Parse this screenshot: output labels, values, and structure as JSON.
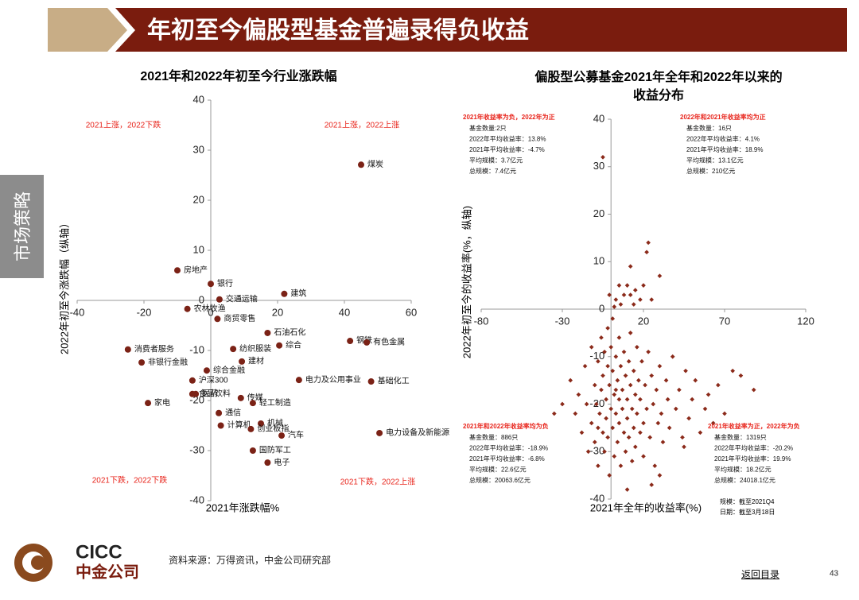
{
  "header": {
    "title": "年初至今偏股型基金普遍录得负收益"
  },
  "side_tab": "市场策略",
  "chart_data": [
    {
      "type": "scatter",
      "title": "2021年和2022年初至今行业涨跌幅",
      "xlabel": "2021年涨跌幅%",
      "ylabel": "2022年初至今涨跌幅（纵轴）",
      "labels": [
        "煤炭",
        "房地产",
        "银行",
        "交通运输",
        "建筑",
        "农林牧渔",
        "商贸零售",
        "石油石化",
        "钢铁",
        "有色金属",
        "综合",
        "纺织服装",
        "消费者服务",
        "非银行金融",
        "建材",
        "综合金融",
        "电力及公用事业",
        "基础化工",
        "沪深300",
        "食品饮料",
        "医药",
        "传媒",
        "轻工制造",
        "家电",
        "通信",
        "计算机",
        "机械",
        "创业板指",
        "汽车",
        "电力设备及新能源",
        "国防军工",
        "电子"
      ],
      "x": [
        45,
        -10,
        0,
        2.6,
        22,
        -7,
        2,
        17,
        41.7,
        46.7,
        20.5,
        6.7,
        -24.8,
        -20.7,
        9.3,
        -1.2,
        26.4,
        48,
        -5.5,
        -5.5,
        -4.5,
        9,
        12.6,
        -18.8,
        2.4,
        3,
        15,
        12,
        21.2,
        50.5,
        12.6,
        17
      ],
      "values": [
        27.1,
        6,
        3.3,
        0.2,
        1.3,
        -1.7,
        -3.7,
        -6.5,
        -8.1,
        -8.4,
        -9,
        -9.7,
        -9.8,
        -12.4,
        -12.2,
        -14,
        -15.9,
        -16.2,
        -16,
        -18.7,
        -18.7,
        -19.5,
        -20.5,
        -20.5,
        -22.5,
        -25,
        -24.6,
        -25.7,
        -27,
        -26.5,
        -30,
        -32.4
      ],
      "xlim": [
        -40,
        60
      ],
      "ylim": [
        -40,
        40
      ],
      "xticks": [
        -40,
        -20,
        0,
        20,
        40,
        60
      ],
      "yticks": [
        -40,
        -30,
        -20,
        -10,
        0,
        10,
        20,
        30,
        40
      ],
      "color": "#7b2216",
      "annotations": [
        "2021上涨，2022下跌",
        "2021上涨，2022上涨",
        "2021下跌，2022下跌",
        "2021下跌，2022上涨"
      ],
      "annotation_color": "#e8251c"
    },
    {
      "type": "scatter",
      "title": "偏股型公募基金2021年全年和2022年以来的收益分布",
      "xlabel": "2021年全年的收益率(%)",
      "ylabel": "2022年初至今的收益率(%，纵轴)",
      "x": [
        -5,
        -1,
        12,
        22,
        23,
        30,
        20,
        5,
        10,
        15,
        18,
        25,
        14,
        8,
        3,
        12,
        6,
        2,
        -25,
        -22,
        -20,
        -18,
        -16,
        -15,
        -14,
        -12,
        -12,
        -10,
        -10,
        -9,
        -8,
        -8,
        -7,
        -6,
        -6,
        -5,
        -5,
        -4,
        -4,
        -3,
        -3,
        -2,
        -2,
        -2,
        -1,
        -1,
        0,
        0,
        1,
        1,
        1,
        2,
        2,
        3,
        3,
        4,
        4,
        5,
        5,
        5,
        6,
        6,
        7,
        7,
        8,
        8,
        9,
        9,
        10,
        10,
        11,
        11,
        12,
        12,
        13,
        13,
        14,
        14,
        15,
        15,
        16,
        16,
        17,
        18,
        18,
        19,
        20,
        20,
        21,
        22,
        23,
        24,
        25,
        26,
        27,
        28,
        29,
        30,
        31,
        32,
        34,
        35,
        36,
        38,
        40,
        42,
        44,
        46,
        48,
        50,
        52,
        55,
        58,
        60,
        63,
        66,
        70,
        75,
        80,
        88,
        -30,
        -35,
        45,
        30,
        25,
        10,
        -8,
        3
      ],
      "values": [
        32,
        3,
        9,
        12,
        14,
        7,
        5,
        5,
        5,
        4,
        2,
        2,
        1,
        3,
        2,
        3,
        1,
        0.5,
        -15,
        -22,
        -18,
        -26,
        -12,
        -20,
        -30,
        -8,
        -24,
        -16,
        -28,
        -20,
        -11,
        -33,
        -22,
        -6,
        -17,
        -26,
        -14,
        -30,
        -9,
        -19,
        -23,
        -4,
        -12,
        -27,
        -16,
        -35,
        -8,
        -21,
        -13,
        -25,
        -2,
        -18,
        -31,
        -10,
        -22,
        -15,
        -28,
        -6,
        -19,
        -24,
        -12,
        -33,
        -17,
        -21,
        -9,
        -26,
        -14,
        -30,
        -19,
        -23,
        -11,
        -27,
        -16,
        -5,
        -21,
        -32,
        -13,
        -25,
        -18,
        -29,
        -8,
        -22,
        -15,
        -26,
        -19,
        -11,
        -24,
        -31,
        -16,
        -21,
        -9,
        -27,
        -14,
        -20,
        -33,
        -17,
        -24,
        -12,
        -22,
        -28,
        -15,
        -19,
        -25,
        -10,
        -21,
        -17,
        -27,
        -13,
        -23,
        -19,
        -15,
        -26,
        -21,
        -18,
        -24,
        -16,
        -22,
        -13,
        -14,
        -17,
        -20,
        -22,
        -29,
        -35,
        -37,
        -38,
        -25,
        -17
      ],
      "xlim": [
        -80,
        120
      ],
      "ylim": [
        -40,
        40
      ],
      "xticks": [
        -80,
        -30,
        20,
        70,
        120
      ],
      "yticks": [
        -40,
        -30,
        -20,
        -10,
        0,
        10,
        20,
        30,
        40
      ],
      "color": "#8b2a1a",
      "annotations": [
        {
          "title": "2021年收益率为负，2022年为正",
          "lines": [
            "基金数量:2只",
            "2022年平均收益率：13.8%",
            "2021年平均收益率：-4.7%",
            "平均规模：3.7亿元",
            "总规模：7.4亿元"
          ]
        },
        {
          "title": "2022年和2021年收益率均为正",
          "lines": [
            "基金数量：16只",
            "2022年平均收益率：4.1%",
            "2021年平均收益率：18.9%",
            "平均规模：13.1亿元",
            "总规模：210亿元"
          ]
        },
        {
          "title": "2021年和2022年收益率均为负",
          "lines": [
            "基金数量：886只",
            "2022年平均收益率：-18.9%",
            "2021年平均收益率：-6.8%",
            "平均规模：22.6亿元",
            "总规模：20063.6亿元"
          ]
        },
        {
          "title": "2021年收益率为正，2022年为负",
          "lines": [
            "基金数量：1319只",
            "2022年平均收益率：-20.2%",
            "2021年平均收益率：19.9%",
            "平均规模：18.2亿元",
            "总规模：24018.1亿元"
          ]
        }
      ],
      "annotation_color": "#e8251c",
      "notes": [
        "规模：截至2021Q4",
        "日期：截至3月18日"
      ]
    }
  ],
  "footer": {
    "logo_en": "CICC",
    "logo_cn": "中金公司",
    "source": "资料来源：万得资讯，中金公司研究部",
    "back_link": "返回目录",
    "page_number": 43
  }
}
